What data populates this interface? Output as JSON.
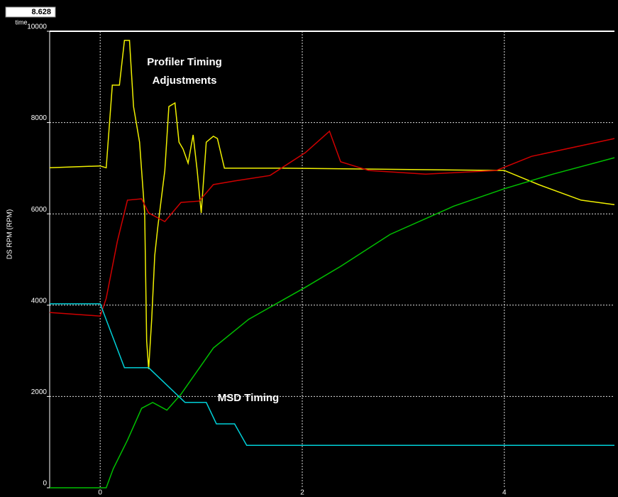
{
  "cursor": {
    "label": "time",
    "value": 8.628
  },
  "chart_data": {
    "type": "line",
    "y_label": "DS RPM (RPM)",
    "annotations": [
      "Profiler Timing",
      "Adjustments",
      "MSD Timing"
    ],
    "xlim": [
      -0.5,
      5.09
    ],
    "ylim": [
      0,
      10000
    ],
    "xticks": [
      0,
      2,
      4
    ],
    "yticks": [
      0,
      2000,
      4000,
      6000,
      8000,
      10000
    ],
    "grid": true,
    "series": [
      {
        "name": "Yellow trace",
        "color": "#f0f000",
        "x": [
          -0.5,
          0,
          0.06,
          0.12,
          0.19,
          0.24,
          0.29,
          0.33,
          0.39,
          0.44,
          0.46,
          0.48,
          0.51,
          0.54,
          0.57,
          0.64,
          0.68,
          0.74,
          0.78,
          0.82,
          0.87,
          0.92,
          0.96,
          1.0,
          1.05,
          1.12,
          1.16,
          1.23,
          1.82,
          4,
          4.34,
          4.76,
          5.09
        ],
        "values": [
          7010,
          7050,
          7010,
          8820,
          8820,
          9800,
          9800,
          8350,
          7570,
          6020,
          3220,
          2600,
          3690,
          5090,
          5710,
          6950,
          8350,
          8430,
          7570,
          7420,
          7110,
          7730,
          6950,
          6020,
          7570,
          7700,
          7650,
          7000,
          7000,
          6950,
          6640,
          6300,
          6200
        ]
      },
      {
        "name": "Red trace",
        "color": "#d00000",
        "x": [
          -0.5,
          0,
          0.06,
          0.17,
          0.27,
          0.41,
          0.48,
          0.64,
          0.8,
          0.98,
          1.12,
          1.33,
          1.68,
          2.03,
          2.27,
          2.38,
          2.66,
          3.22,
          3.92,
          4.27,
          5.09
        ],
        "values": [
          3840,
          3760,
          4150,
          5400,
          6300,
          6330,
          6020,
          5830,
          6250,
          6280,
          6640,
          6720,
          6840,
          7340,
          7810,
          7140,
          6950,
          6870,
          6950,
          7260,
          7650
        ]
      },
      {
        "name": "Green trace",
        "color": "#00c000",
        "x": [
          -0.5,
          0.06,
          0.13,
          0.27,
          0.41,
          0.52,
          0.66,
          0.8,
          1.12,
          1.47,
          2.03,
          2.38,
          2.87,
          3.5,
          4,
          4.48,
          5.09
        ],
        "values": [
          0,
          0,
          420,
          1040,
          1740,
          1870,
          1700,
          2050,
          3060,
          3690,
          4390,
          4850,
          5550,
          6170,
          6550,
          6870,
          7230
        ]
      },
      {
        "name": "Cyan trace",
        "color": "#00d0d8",
        "x": [
          -0.5,
          0,
          0.24,
          0.48,
          0.84,
          1.05,
          1.15,
          1.33,
          1.45,
          5.09
        ],
        "values": [
          4030,
          4030,
          2630,
          2630,
          1870,
          1870,
          1400,
          1400,
          930,
          930
        ]
      }
    ]
  }
}
